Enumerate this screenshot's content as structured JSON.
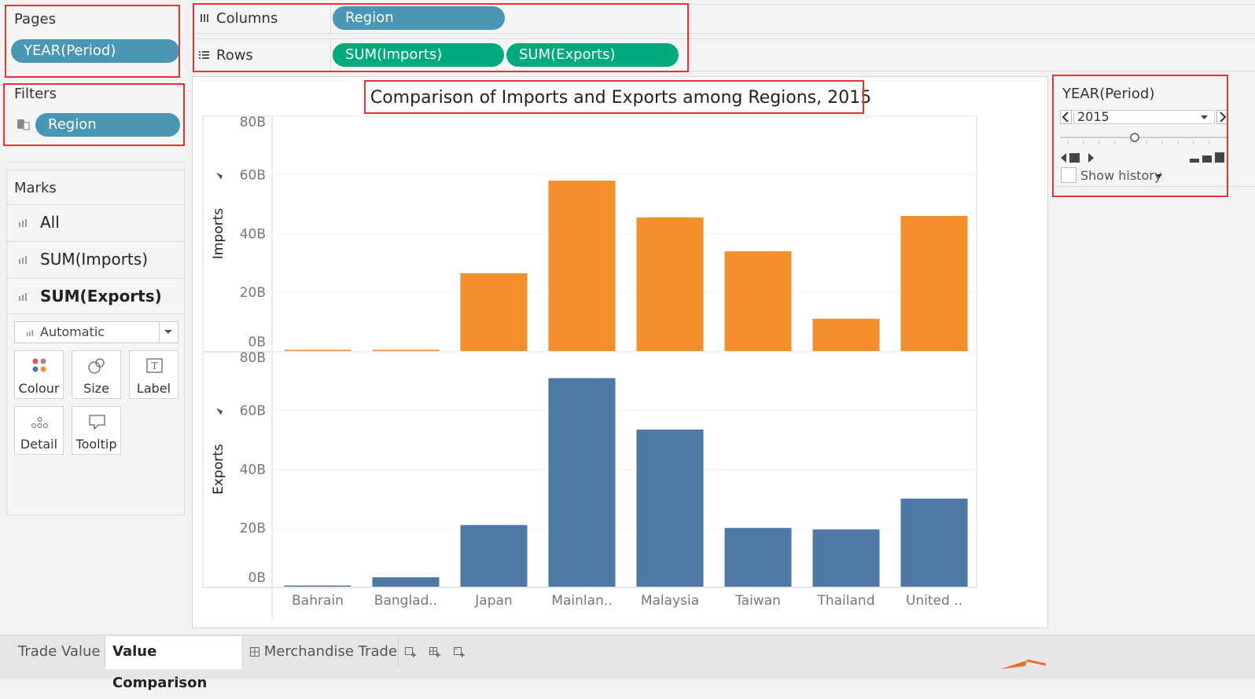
{
  "shelves": {
    "pages_title": "Pages",
    "pages_pill": "YEAR(Period)",
    "filters_title": "Filters",
    "filters_pill": "Region",
    "columns_label": "Columns",
    "columns_pill": "Region",
    "rows_label": "Rows",
    "rows_pills": [
      "SUM(Imports)",
      "SUM(Exports)"
    ]
  },
  "marks": {
    "title": "Marks",
    "items": [
      "All",
      "SUM(Imports)",
      "SUM(Exports)"
    ],
    "mark_type": "Automatic",
    "buttons": [
      "Colour",
      "Size",
      "Label",
      "Detail",
      "Tooltip"
    ]
  },
  "page_control": {
    "title": "YEAR(Period)",
    "selected": "2015",
    "show_history": "Show history"
  },
  "tabs": [
    "Trade Value",
    "Value Comparison",
    "Merchandise Trade"
  ],
  "active_tab": "Value Comparison",
  "colors": {
    "imports": "#f28e2b",
    "exports": "#4e79a7",
    "pill_blue": "#4a96b5",
    "pill_green": "#00a97c",
    "highlight": "#e63232"
  },
  "chart_data": {
    "type": "bar",
    "title": "Comparison of Imports and Exports among Regions, 2015",
    "categories": [
      "Bahrain",
      "Banglad..",
      "Japan",
      "Mainlan..",
      "Malaysia",
      "Taiwan",
      "Thailand",
      "United .."
    ],
    "series": [
      {
        "name": "Imports",
        "values": [
          0.2,
          0.3,
          26.5,
          58,
          45.5,
          34,
          11,
          46
        ]
      },
      {
        "name": "Exports",
        "values": [
          0.4,
          3.2,
          21,
          71,
          53.5,
          20,
          19.5,
          30
        ]
      }
    ],
    "ylim": [
      0,
      80
    ],
    "yticks": [
      "0B",
      "20B",
      "40B",
      "60B",
      "80B"
    ],
    "ylabels": [
      "Imports",
      "Exports"
    ],
    "unit": "B"
  }
}
